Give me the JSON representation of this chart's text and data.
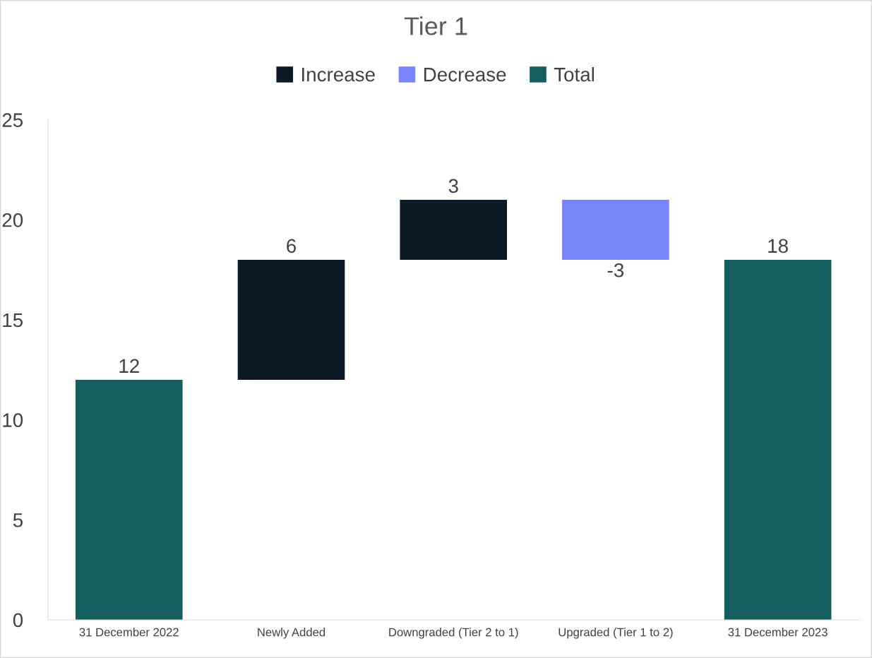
{
  "chart_data": {
    "type": "bar",
    "title": "Tier 1",
    "categories": [
      "31 December 2022",
      "Newly Added",
      "Downgraded (Tier 2 to 1)",
      "Upgraded (Tier 1 to 2)",
      "31 December 2023"
    ],
    "series": [
      {
        "name": "Increase",
        "color": "#0d1a27",
        "values": [
          null,
          6,
          3,
          null,
          null
        ],
        "base": [
          null,
          12,
          18,
          null,
          null
        ]
      },
      {
        "name": "Decrease",
        "color": "#7a84fb",
        "values": [
          null,
          null,
          null,
          -3,
          null
        ],
        "base": [
          null,
          null,
          null,
          21,
          null
        ]
      },
      {
        "name": "Total",
        "color": "#155e60",
        "values": [
          12,
          null,
          null,
          null,
          18
        ],
        "base": [
          0,
          null,
          null,
          null,
          0
        ]
      }
    ],
    "ylim": [
      0,
      25
    ],
    "yticks": [
      0,
      5,
      10,
      15,
      20,
      25
    ],
    "grid": false,
    "legend": "top",
    "data_labels": true
  }
}
